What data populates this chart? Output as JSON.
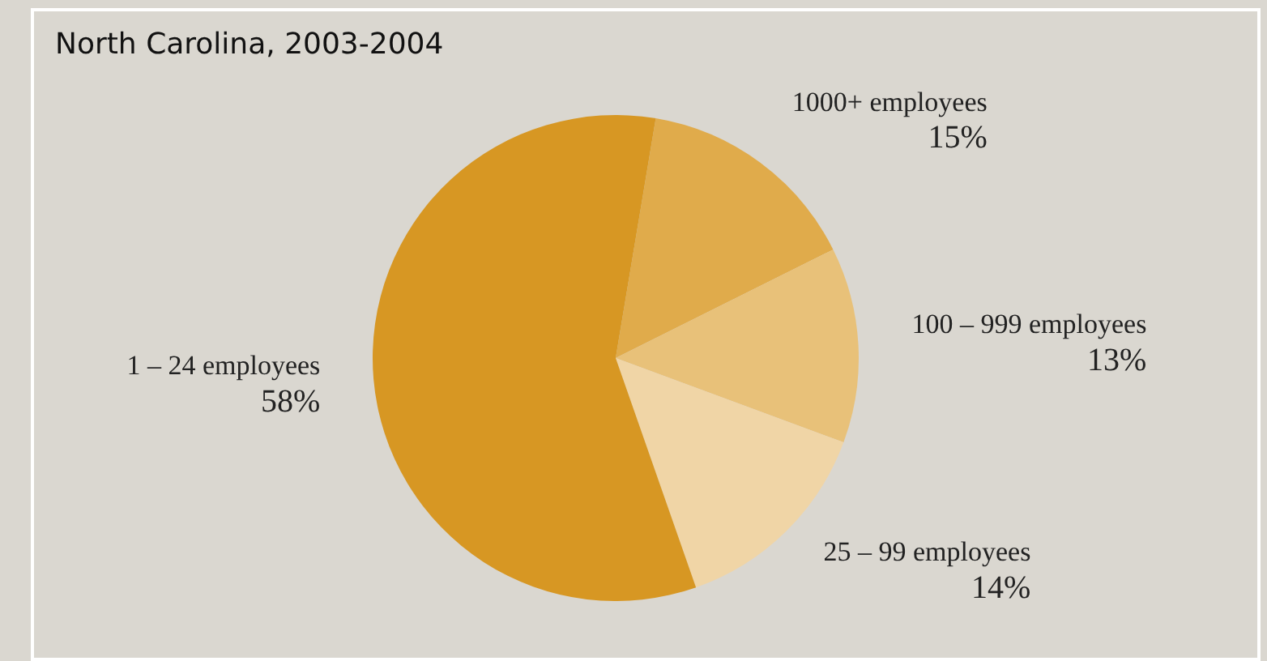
{
  "chart_data": {
    "type": "pie",
    "title": "North Carolina, 2003-2004",
    "categories": [
      "1000+ employees",
      "100 – 999 employees",
      "25 – 99 employees",
      "1 – 24 employees"
    ],
    "values": [
      15,
      13,
      14,
      58
    ],
    "value_labels": [
      "15%",
      "13%",
      "14%",
      "58%"
    ],
    "colors": [
      "#e0ab4b",
      "#e8c179",
      "#f0d5a6",
      "#d79723"
    ],
    "legend": false
  }
}
